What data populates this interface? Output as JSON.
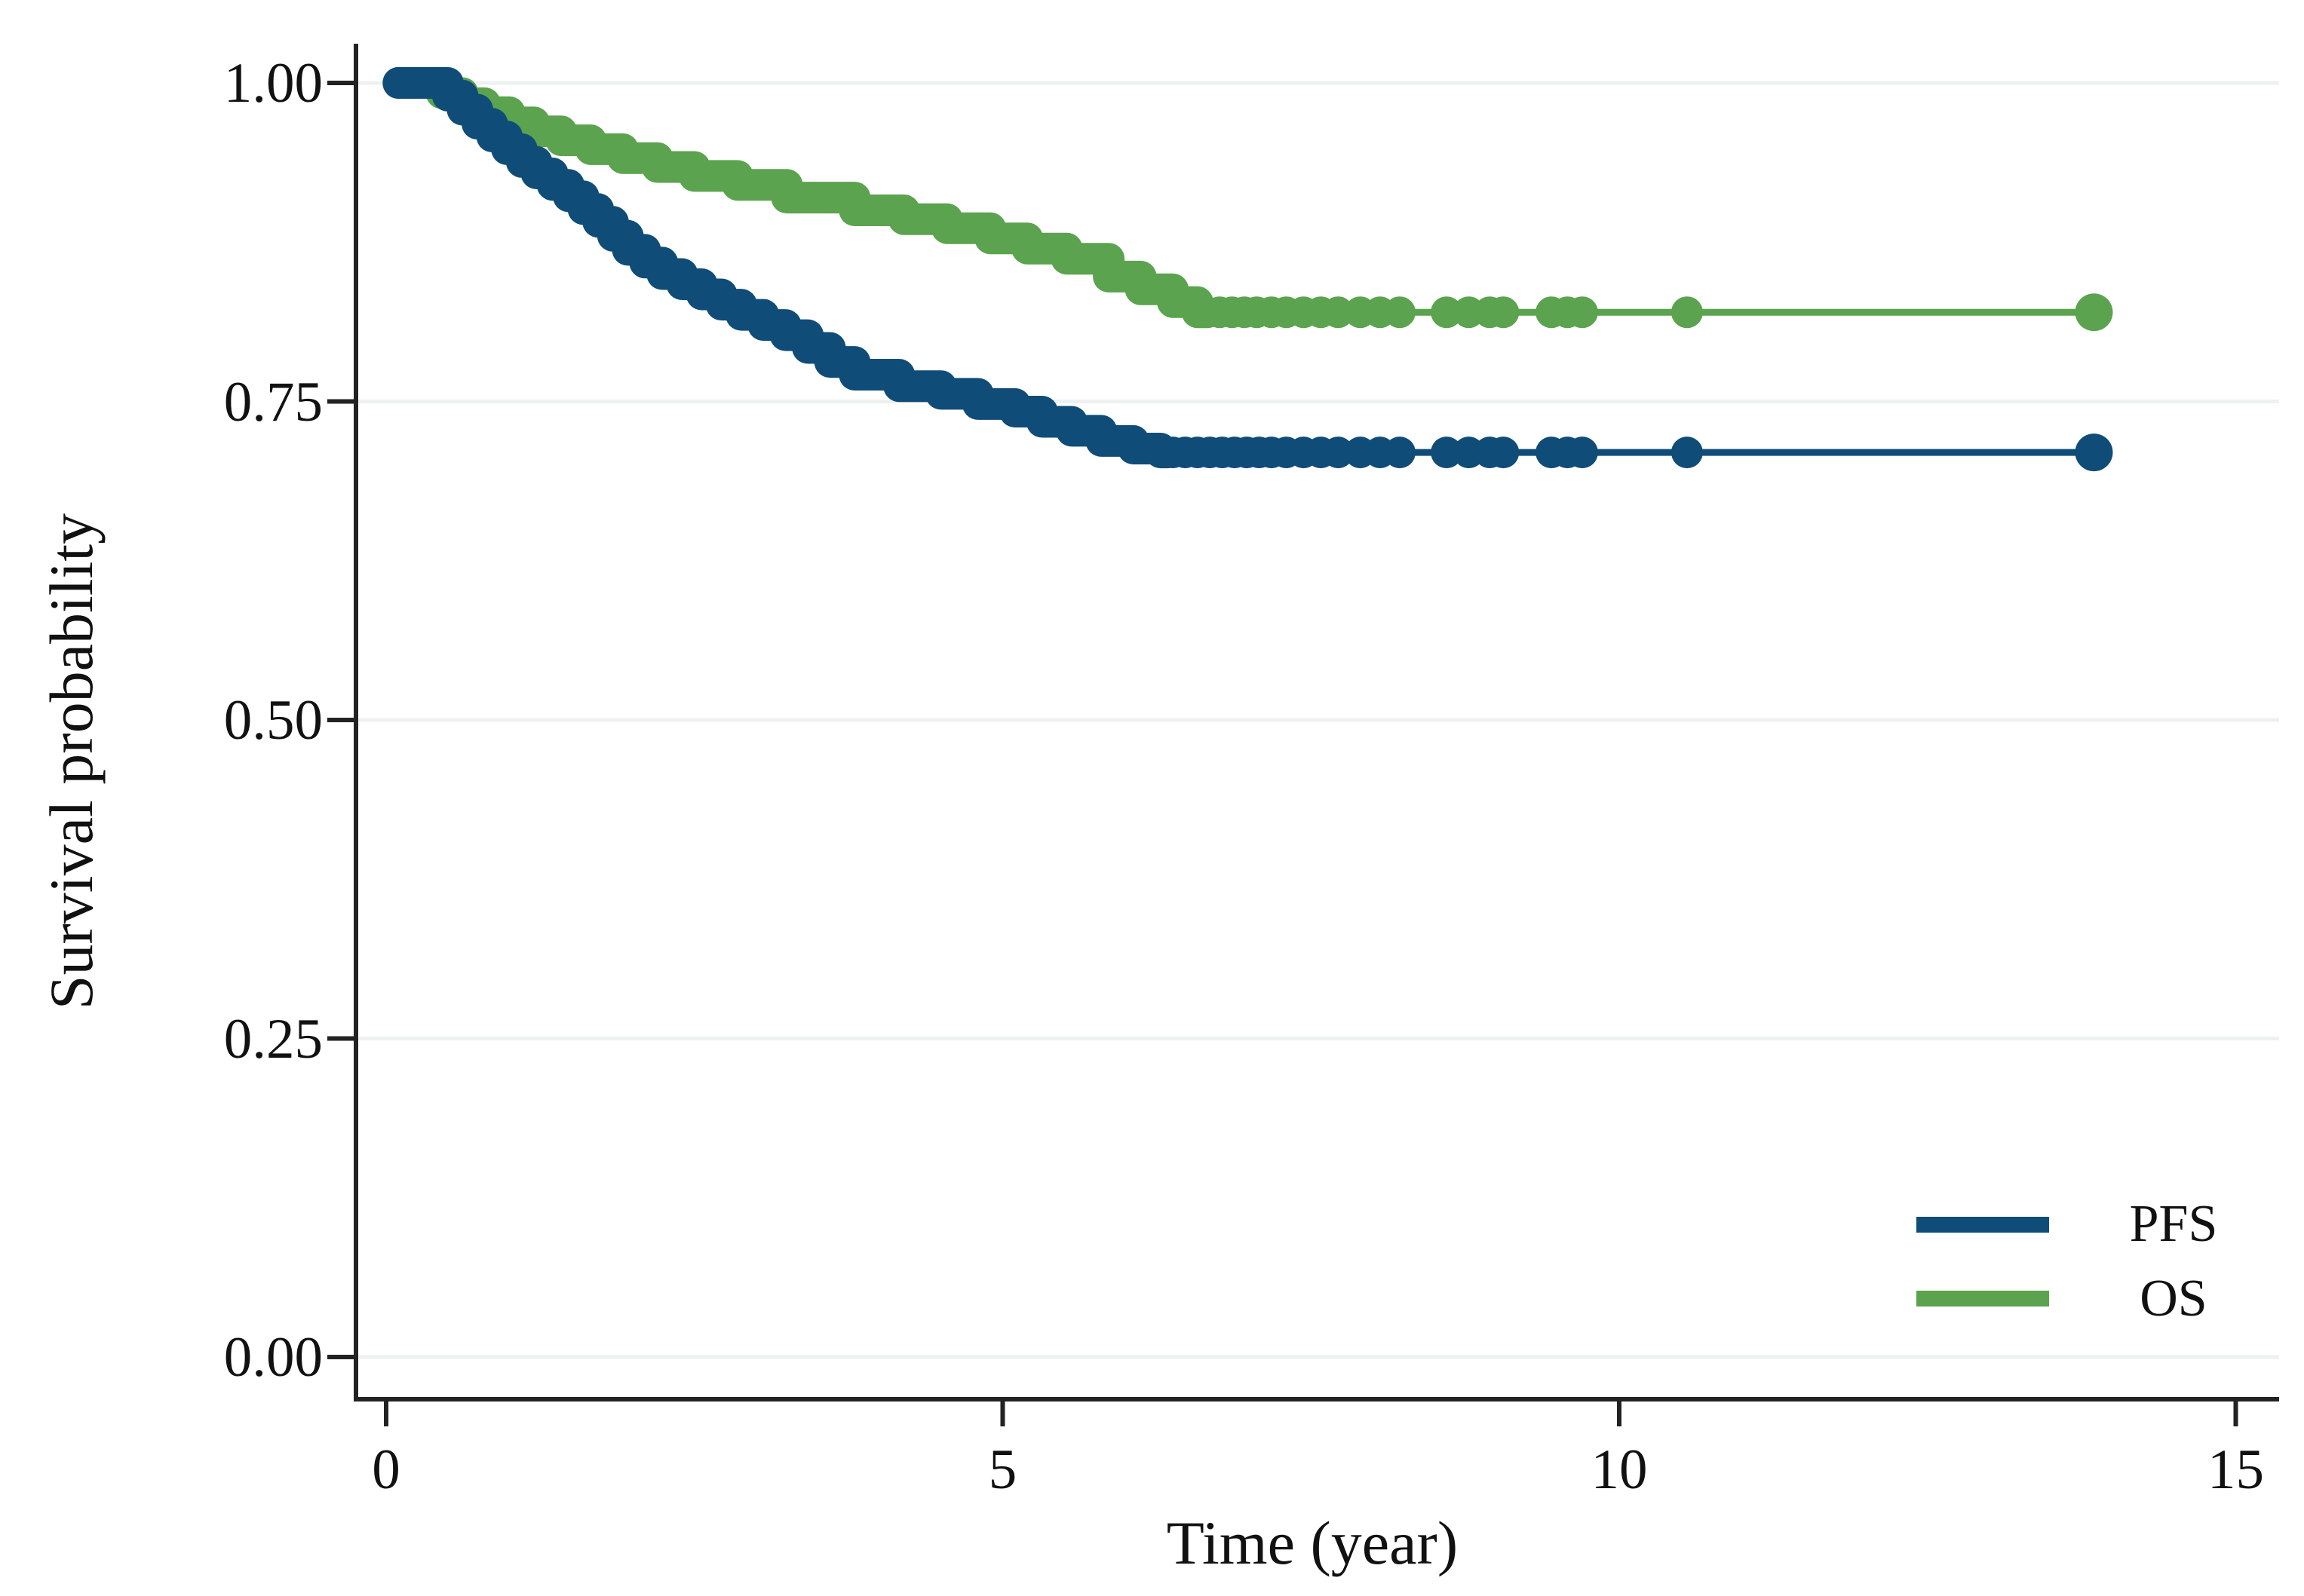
{
  "page": {
    "background": "#ffffff"
  },
  "chart_data": {
    "type": "line",
    "subtype": "kaplan-meier-step-curves",
    "title": "",
    "xlabel": "Time (year)",
    "ylabel": "Survival probability",
    "xlim": [
      0,
      15.35
    ],
    "ylim": [
      0,
      1.0
    ],
    "grid": true,
    "legend_position": "bottom-right",
    "colors": {
      "grid": "#EDF2F1",
      "axis": "#222222",
      "text": "#111111",
      "background": "#ffffff"
    },
    "xticks": [
      {
        "value": 0,
        "label": "0"
      },
      {
        "value": 5,
        "label": "5"
      },
      {
        "value": 10,
        "label": "10"
      },
      {
        "value": 15,
        "label": "15"
      }
    ],
    "yticks": [
      {
        "value": 1.0,
        "label": "1.00"
      },
      {
        "value": 0.75,
        "label": "0.75"
      },
      {
        "value": 0.5,
        "label": "0.50"
      },
      {
        "value": 0.25,
        "label": "0.25"
      },
      {
        "value": 0.0,
        "label": "0.00"
      }
    ],
    "legend": [
      {
        "label": "PFS",
        "color": "#0F4C78"
      },
      {
        "label": "OS",
        "color": "#5BA34E"
      }
    ],
    "series": [
      {
        "name": "PFS",
        "color": "#0F4C78",
        "start_dot_time": 0.1,
        "plateau_value": 0.71,
        "plateau_start_time": 6.3,
        "end_time": 13.85,
        "steps": [
          [
            0.1,
            1.0
          ],
          [
            0.5,
            1.0
          ],
          [
            0.5,
            0.99
          ],
          [
            0.62,
            0.99
          ],
          [
            0.62,
            0.979
          ],
          [
            0.74,
            0.979
          ],
          [
            0.74,
            0.968
          ],
          [
            0.86,
            0.968
          ],
          [
            0.86,
            0.958
          ],
          [
            0.98,
            0.958
          ],
          [
            0.98,
            0.948
          ],
          [
            1.1,
            0.948
          ],
          [
            1.1,
            0.938
          ],
          [
            1.22,
            0.938
          ],
          [
            1.22,
            0.929
          ],
          [
            1.35,
            0.929
          ],
          [
            1.35,
            0.92
          ],
          [
            1.48,
            0.92
          ],
          [
            1.48,
            0.911
          ],
          [
            1.6,
            0.911
          ],
          [
            1.6,
            0.901
          ],
          [
            1.72,
            0.901
          ],
          [
            1.72,
            0.891
          ],
          [
            1.84,
            0.891
          ],
          [
            1.84,
            0.88
          ],
          [
            1.96,
            0.88
          ],
          [
            1.96,
            0.869
          ],
          [
            2.1,
            0.869
          ],
          [
            2.1,
            0.859
          ],
          [
            2.24,
            0.859
          ],
          [
            2.24,
            0.85
          ],
          [
            2.4,
            0.85
          ],
          [
            2.4,
            0.842
          ],
          [
            2.56,
            0.842
          ],
          [
            2.56,
            0.834
          ],
          [
            2.72,
            0.834
          ],
          [
            2.72,
            0.826
          ],
          [
            2.88,
            0.826
          ],
          [
            2.88,
            0.818
          ],
          [
            3.06,
            0.818
          ],
          [
            3.06,
            0.81
          ],
          [
            3.24,
            0.81
          ],
          [
            3.24,
            0.802
          ],
          [
            3.42,
            0.802
          ],
          [
            3.42,
            0.792
          ],
          [
            3.6,
            0.792
          ],
          [
            3.6,
            0.781
          ],
          [
            3.8,
            0.781
          ],
          [
            3.8,
            0.771
          ],
          [
            4.16,
            0.771
          ],
          [
            4.16,
            0.762
          ],
          [
            4.5,
            0.762
          ],
          [
            4.5,
            0.756
          ],
          [
            4.8,
            0.756
          ],
          [
            4.8,
            0.748
          ],
          [
            5.1,
            0.748
          ],
          [
            5.1,
            0.742
          ],
          [
            5.32,
            0.742
          ],
          [
            5.32,
            0.734
          ],
          [
            5.56,
            0.734
          ],
          [
            5.56,
            0.727
          ],
          [
            5.8,
            0.727
          ],
          [
            5.8,
            0.719
          ],
          [
            6.06,
            0.719
          ],
          [
            6.06,
            0.713
          ],
          [
            6.28,
            0.713
          ],
          [
            6.28,
            0.71
          ],
          [
            6.34,
            0.71
          ]
        ],
        "censor_times_on_plateau": [
          6.38,
          6.48,
          6.58,
          6.68,
          6.78,
          6.88,
          6.98,
          7.08,
          7.18,
          7.3,
          7.44,
          7.58,
          7.72,
          7.9,
          8.06,
          8.22,
          8.6,
          8.78,
          8.95,
          9.06,
          9.45,
          9.58,
          9.7,
          10.55,
          13.85
        ]
      },
      {
        "name": "OS",
        "color": "#5BA34E",
        "start_dot_time": 0.1,
        "plateau_value": 0.82,
        "plateau_start_time": 6.6,
        "end_time": 13.85,
        "steps": [
          [
            0.1,
            1.0
          ],
          [
            0.45,
            1.0
          ],
          [
            0.45,
            0.992
          ],
          [
            0.62,
            0.992
          ],
          [
            0.62,
            0.984
          ],
          [
            0.8,
            0.984
          ],
          [
            0.8,
            0.977
          ],
          [
            1.0,
            0.977
          ],
          [
            1.0,
            0.969
          ],
          [
            1.2,
            0.969
          ],
          [
            1.2,
            0.962
          ],
          [
            1.42,
            0.962
          ],
          [
            1.42,
            0.955
          ],
          [
            1.66,
            0.955
          ],
          [
            1.66,
            0.948
          ],
          [
            1.92,
            0.948
          ],
          [
            1.92,
            0.941
          ],
          [
            2.2,
            0.941
          ],
          [
            2.2,
            0.934
          ],
          [
            2.5,
            0.934
          ],
          [
            2.5,
            0.927
          ],
          [
            2.85,
            0.927
          ],
          [
            2.85,
            0.92
          ],
          [
            3.25,
            0.92
          ],
          [
            3.25,
            0.91
          ],
          [
            3.8,
            0.91
          ],
          [
            3.8,
            0.9
          ],
          [
            4.2,
            0.9
          ],
          [
            4.2,
            0.893
          ],
          [
            4.55,
            0.893
          ],
          [
            4.55,
            0.886
          ],
          [
            4.9,
            0.886
          ],
          [
            4.9,
            0.878
          ],
          [
            5.2,
            0.878
          ],
          [
            5.2,
            0.87
          ],
          [
            5.52,
            0.87
          ],
          [
            5.52,
            0.862
          ],
          [
            5.86,
            0.862
          ],
          [
            5.86,
            0.848
          ],
          [
            6.12,
            0.848
          ],
          [
            6.12,
            0.838
          ],
          [
            6.38,
            0.838
          ],
          [
            6.38,
            0.828
          ],
          [
            6.58,
            0.828
          ],
          [
            6.58,
            0.82
          ],
          [
            6.64,
            0.82
          ]
        ],
        "censor_times_on_plateau": [
          6.66,
          6.76,
          6.86,
          6.96,
          7.06,
          7.18,
          7.3,
          7.44,
          7.58,
          7.72,
          7.9,
          8.06,
          8.22,
          8.6,
          8.78,
          8.95,
          9.06,
          9.45,
          9.58,
          9.7,
          10.55,
          13.85
        ]
      }
    ]
  }
}
